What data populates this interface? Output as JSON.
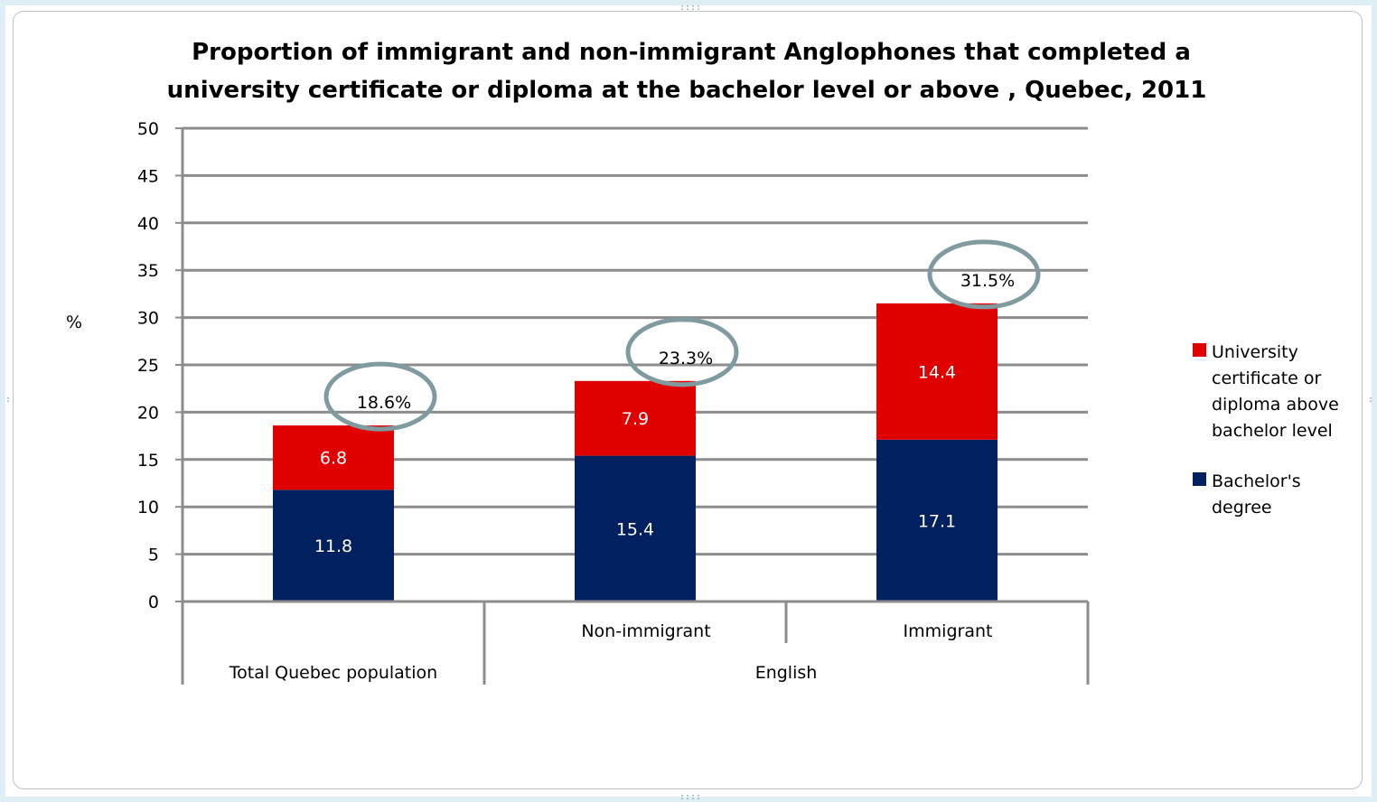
{
  "chart_data": {
    "type": "bar",
    "stacked": true,
    "title": "Proportion of immigrant and non-immigrant Anglophones that completed a university certificate or diploma at the bachelor level or above , Quebec, 2011",
    "title_lines": [
      "Proportion of immigrant and non-immigrant Anglophones that completed a",
      "university certificate or diploma at the bachelor level or above , Quebec, 2011"
    ],
    "ylabel": "%",
    "xlabel": "",
    "ylim": [
      0,
      50
    ],
    "yticks": [
      0,
      5,
      10,
      15,
      20,
      25,
      30,
      35,
      40,
      45,
      50
    ],
    "grid": true,
    "legend_position": "right",
    "categories": [
      "Total Quebec population",
      "Non-immigrant",
      "Immigrant"
    ],
    "category_groups": [
      {
        "label": "Total Quebec population",
        "members": [
          "Total Quebec population"
        ]
      },
      {
        "label": "English",
        "members": [
          "Non-immigrant",
          "Immigrant"
        ]
      }
    ],
    "sublabels": [
      "",
      "Non-immigrant",
      "Immigrant"
    ],
    "series": [
      {
        "name": "Bachelor's degree",
        "legend_lines": [
          "Bachelor's",
          "degree"
        ],
        "color": "#002060",
        "values": [
          11.8,
          15.4,
          17.1
        ],
        "labels": [
          "11.8",
          "15.4",
          "17.1"
        ]
      },
      {
        "name": "University certificate or diploma above bachelor level",
        "legend_lines": [
          "University",
          "certificate or",
          "diploma above",
          "bachelor level"
        ],
        "color": "#e00000",
        "values": [
          6.8,
          7.9,
          14.4
        ],
        "labels": [
          "6.8",
          "7.9",
          "14.4"
        ]
      }
    ],
    "totals": [
      18.6,
      23.3,
      31.5
    ],
    "total_labels": [
      "18.6%",
      "23.3%",
      "31.5%"
    ],
    "annotation_circle_color": "#7f9ba0"
  }
}
